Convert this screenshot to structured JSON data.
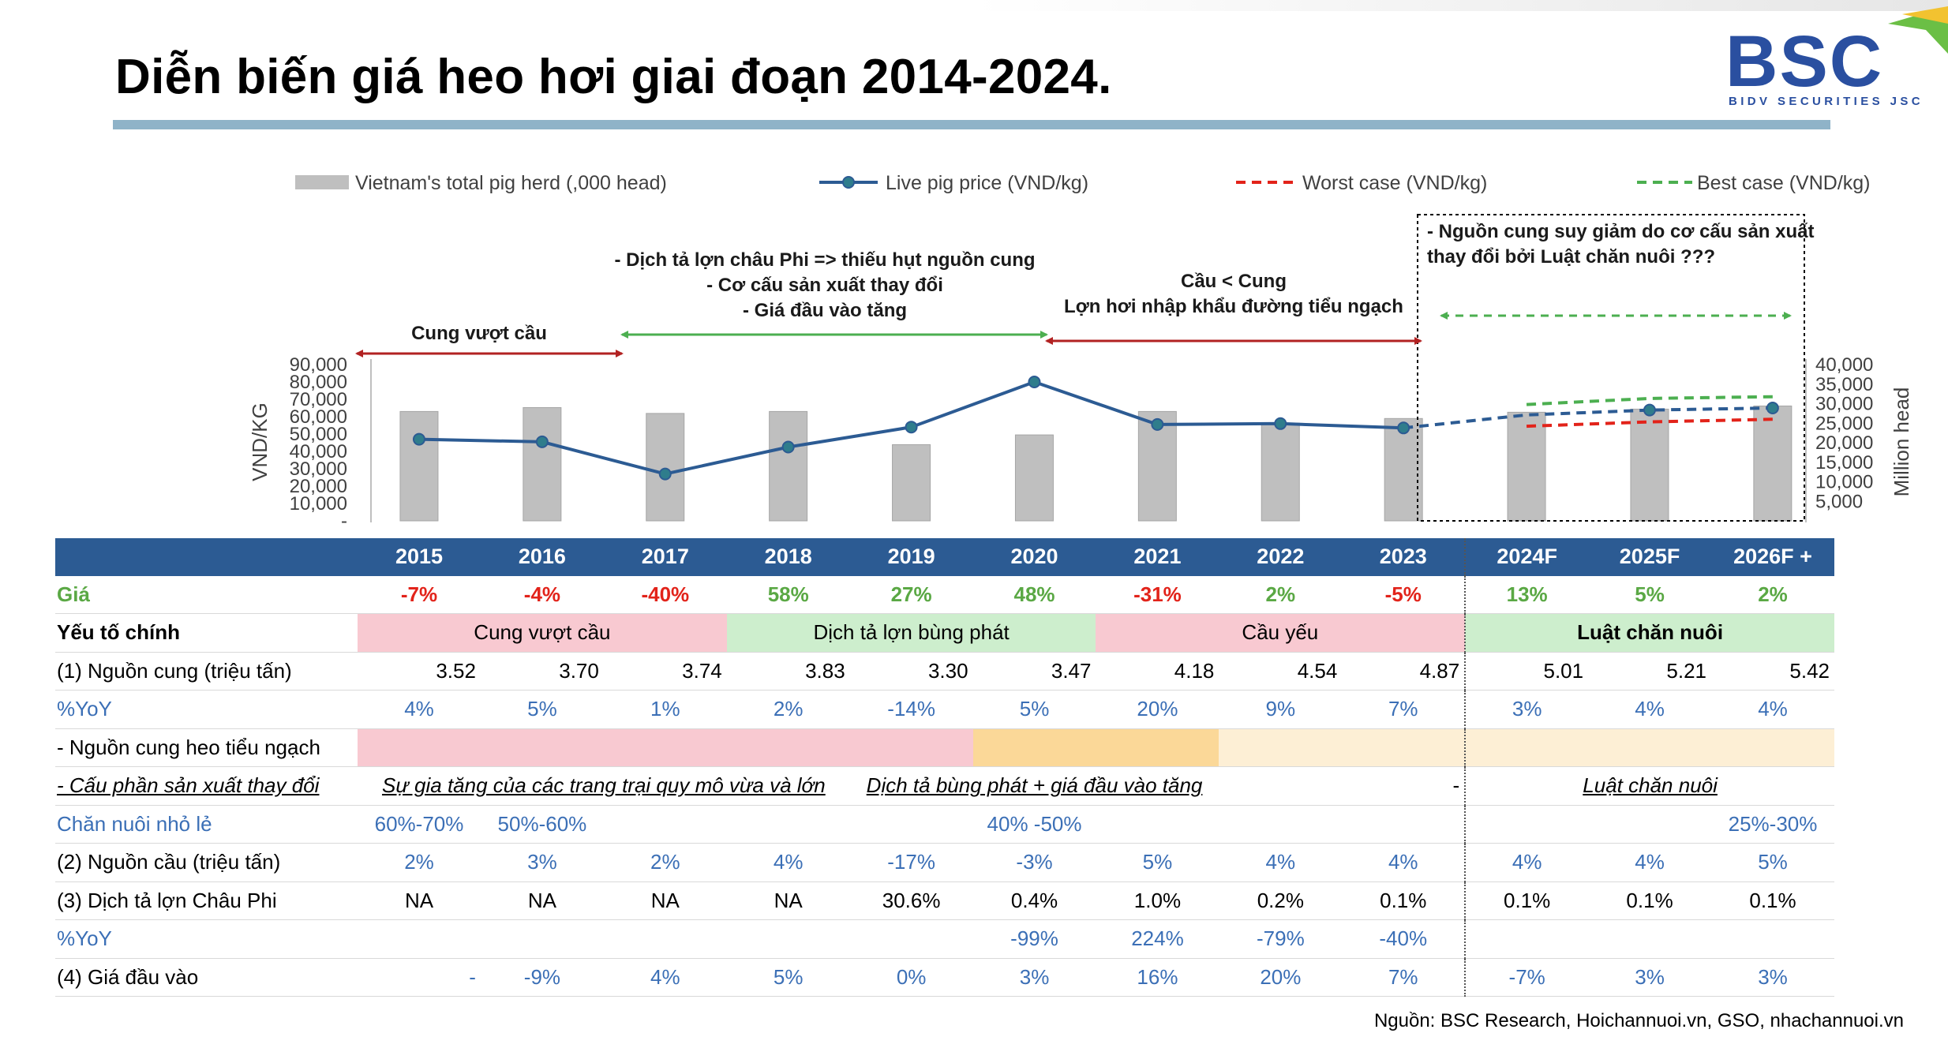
{
  "title": "Diễn biến giá heo hơi giai đoạn 2014-2024.",
  "logo": {
    "text": "BSC",
    "subtitle": "BIDV SECURITIES JSC"
  },
  "colors": {
    "bar": "#bfbfbf",
    "price_line": "#2c5b93",
    "worst": "#e2231a",
    "best": "#4caf50",
    "header": "#2c5b93"
  },
  "chart_data": {
    "type": "bar+line",
    "categories": [
      "2015",
      "2016",
      "2017",
      "2018",
      "2019",
      "2020",
      "2021",
      "2022",
      "2023",
      "2024F",
      "2025F",
      "2026F +"
    ],
    "ylabel": "VND/KG",
    "y2label": "Million head",
    "ylim": [
      0,
      90000
    ],
    "y2lim": [
      0,
      40000
    ],
    "yticks": [
      "-",
      "10,000",
      "20,000",
      "30,000",
      "40,000",
      "50,000",
      "60,000",
      "70,000",
      "80,000",
      "90,000"
    ],
    "y2ticks": [
      "5,000",
      "10,000",
      "15,000",
      "20,000",
      "25,000",
      "30,000",
      "35,000",
      "40,000"
    ],
    "legend": [
      {
        "label": "Vietnam's total pig herd (,000 head)",
        "kind": "bar"
      },
      {
        "label": "Live pig price (VND/kg)",
        "kind": "line"
      },
      {
        "label": "Worst case (VND/kg)",
        "kind": "dash-red"
      },
      {
        "label": "Best case (VND/kg)",
        "kind": "dash-green"
      }
    ],
    "herd": [
      28000,
      29000,
      27500,
      28000,
      19500,
      22000,
      28000,
      25000,
      26200,
      27800,
      28600,
      29400
    ],
    "price": [
      47000,
      45500,
      27000,
      42500,
      54000,
      80000,
      55500,
      56000,
      53500,
      61000,
      63800,
      65000
    ],
    "worst": [
      null,
      null,
      null,
      null,
      null,
      null,
      null,
      null,
      null,
      54500,
      57000,
      58500
    ],
    "best": [
      null,
      null,
      null,
      null,
      null,
      null,
      null,
      null,
      null,
      67000,
      70500,
      71500
    ],
    "annotations": [
      {
        "text": [
          "Cung vượt cầu"
        ],
        "from": 0,
        "to": 2,
        "color": "#b22222"
      },
      {
        "text": [
          "- Dịch tả lợn châu Phi => thiếu hụt nguồn cung",
          "- Cơ cấu sản xuất thay đổi",
          "- Giá đầu vào tăng"
        ],
        "from": 2,
        "to": 5,
        "color": "#4caf50"
      },
      {
        "text": [
          "Cầu < Cung",
          "Lợn hơi nhập khẩu đường tiểu ngạch"
        ],
        "from": 5,
        "to": 9,
        "color": "#b22222"
      },
      {
        "text": [
          "- Nguồn cung  suy giảm do cơ cấu sản xuất",
          "thay đổi bởi Luật chăn nuôi ???"
        ],
        "from": 9,
        "to": 12,
        "color": "#4caf50"
      }
    ]
  },
  "table": {
    "years": [
      "2015",
      "2016",
      "2017",
      "2018",
      "2019",
      "2020",
      "2021",
      "2022",
      "2023",
      "2024F",
      "2025F",
      "2026F +"
    ],
    "gia_label": "Giá",
    "gia": [
      "-7%",
      "-4%",
      "-40%",
      "58%",
      "27%",
      "48%",
      "-31%",
      "2%",
      "-5%",
      "13%",
      "5%",
      "2%"
    ],
    "yeu_to_label": "Yếu tố chính",
    "bands": {
      "b1": "Cung vượt cầu",
      "b2": "Dịch tả lợn bùng phát",
      "b3": "Cầu yếu",
      "b4": "Luật chăn nuôi"
    },
    "nguon_cung_label": "(1) Nguồn cung (triệu tấn)",
    "nguon_cung": [
      "3.52",
      "3.70",
      "3.74",
      "3.83",
      "3.30",
      "3.47",
      "4.18",
      "4.54",
      "4.87",
      "5.01",
      "5.21",
      "5.42"
    ],
    "yoy_label": "%YoY",
    "yoy1": [
      "4%",
      "5%",
      "1%",
      "2%",
      "-14%",
      "5%",
      "20%",
      "9%",
      "7%",
      "3%",
      "4%",
      "4%"
    ],
    "tieu_ngach_label": "- Nguồn cung heo tiểu ngạch",
    "co_cau_label": "- Cấu phần sản xuất thay đổi",
    "co_cau_a": "Sự gia tăng của các trang trại quy mô vừa và lớn",
    "co_cau_b": "Dịch tả bùng phát + giá đầu vào tăng",
    "co_cau_dash": "-",
    "co_cau_c": "Luật chăn nuôi",
    "chan_nuoi_label": "Chăn nuôi nhỏ lẻ",
    "chan_nuoi_a": "60%-70%",
    "chan_nuoi_b": "50%-60%",
    "chan_nuoi_c": "40% -50%",
    "chan_nuoi_d": "25%-30%",
    "nhu_cau_label": "(2) Nguồn cầu (triệu tấn)",
    "nhu_cau": [
      "2%",
      "3%",
      "2%",
      "4%",
      "-17%",
      "-3%",
      "5%",
      "4%",
      "4%",
      "4%",
      "4%",
      "5%"
    ],
    "dich_ta_label": "(3) Dịch tả lợn Châu Phi",
    "dich_ta": [
      "NA",
      "NA",
      "NA",
      "NA",
      "30.6%",
      "0.4%",
      "1.0%",
      "0.2%",
      "0.1%",
      "0.1%",
      "0.1%",
      "0.1%"
    ],
    "yoy3": [
      "",
      "",
      "",
      "",
      "",
      "-99%",
      "224%",
      "-79%",
      "-40%",
      "",
      "",
      ""
    ],
    "gia_dau_vao_label": "(4) Giá đầu vào",
    "gia_dau_vao": [
      "-",
      "-9%",
      "4%",
      "5%",
      "0%",
      "3%",
      "16%",
      "20%",
      "7%",
      "-7%",
      "3%",
      "3%"
    ]
  },
  "source": "Nguồn: BSC Research, Hoichannuoi.vn, GSO, nhachannuoi.vn"
}
